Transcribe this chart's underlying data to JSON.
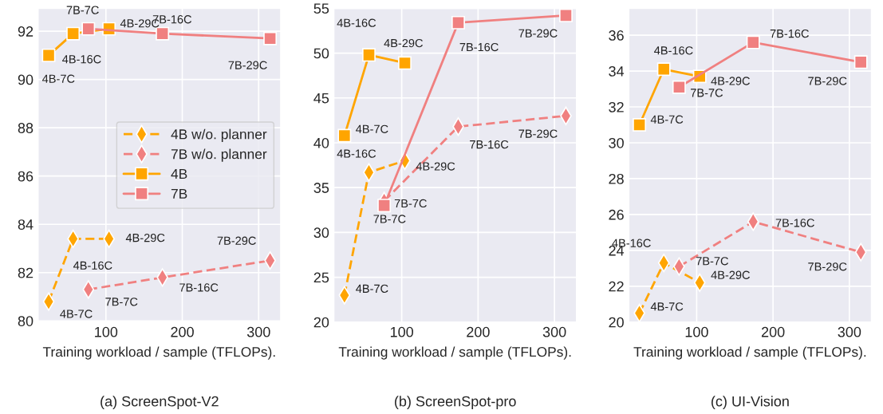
{
  "chart_data": [
    {
      "type": "line",
      "title": "(a) ScreenSpot-V2",
      "xlabel": "Training workload / sample (TFLOPs).",
      "xlim": [
        11,
        329
      ],
      "xticks": [
        100,
        200,
        300
      ],
      "ylim": [
        79.95,
        92.95
      ],
      "yticks": [
        80,
        82,
        84,
        86,
        88,
        90,
        92
      ],
      "grid": true,
      "legend": "center right",
      "series": [
        {
          "name": "4B w/o. planner",
          "color": "#ffa500",
          "marker": "diamond",
          "line_style": "dashed",
          "x": [
            25,
            57,
            104
          ],
          "values": [
            80.8,
            83.4,
            83.4
          ]
        },
        {
          "name": "7B w/o. planner",
          "color": "#f08080",
          "marker": "diamond",
          "line_style": "dashed",
          "x": [
            77,
            174,
            315
          ],
          "values": [
            81.3,
            81.8,
            82.5
          ]
        },
        {
          "name": "4B",
          "color": "#ffa500",
          "marker": "square",
          "line_style": "solid",
          "x": [
            25,
            57,
            104
          ],
          "values": [
            91.0,
            91.9,
            92.1
          ]
        },
        {
          "name": "7B",
          "color": "#f08080",
          "marker": "square",
          "line_style": "solid",
          "x": [
            77,
            174,
            315
          ],
          "values": [
            92.1,
            91.9,
            91.7
          ]
        }
      ],
      "annotations": [
        {
          "text": "4B-7C",
          "x": 25,
          "y": 80.8
        },
        {
          "text": "4B-16C",
          "x": 57,
          "y": 83.4
        },
        {
          "text": "4B-29C",
          "x": 104,
          "y": 83.4
        },
        {
          "text": "7B-7C",
          "x": 77,
          "y": 81.3
        },
        {
          "text": "7B-16C",
          "x": 174,
          "y": 81.8
        },
        {
          "text": "7B-29C",
          "x": 315,
          "y": 82.5
        },
        {
          "text": "4B-7C",
          "x": 25,
          "y": 91.0
        },
        {
          "text": "4B-16C",
          "x": 57,
          "y": 91.9
        },
        {
          "text": "4B-29C",
          "x": 104,
          "y": 92.1
        },
        {
          "text": "7B-7C",
          "x": 77,
          "y": 92.1
        },
        {
          "text": "7B-16C",
          "x": 174,
          "y": 91.9
        },
        {
          "text": "7B-29C",
          "x": 315,
          "y": 91.7
        }
      ]
    },
    {
      "type": "line",
      "title": "(b) ScreenSpot-pro",
      "xlabel": "Training workload / sample (TFLOPs).",
      "xlim": [
        11,
        329
      ],
      "xticks": [
        100,
        200,
        300
      ],
      "ylim": [
        20,
        55
      ],
      "yticks": [
        20,
        25,
        30,
        35,
        40,
        45,
        50,
        55
      ],
      "grid": true,
      "series": [
        {
          "color": "#ffa500",
          "marker": "diamond",
          "line_style": "dashed",
          "x": [
            25,
            57,
            104
          ],
          "values": [
            23.0,
            36.7,
            38.0
          ]
        },
        {
          "color": "#f08080",
          "marker": "diamond",
          "line_style": "dashed",
          "x": [
            77,
            174,
            315
          ],
          "values": [
            33.5,
            41.8,
            43.0
          ]
        },
        {
          "color": "#ffa500",
          "marker": "square",
          "line_style": "solid",
          "x": [
            25,
            57,
            104
          ],
          "values": [
            40.8,
            49.8,
            48.9
          ]
        },
        {
          "color": "#f08080",
          "marker": "square",
          "line_style": "solid",
          "x": [
            77,
            174,
            315
          ],
          "values": [
            33.0,
            53.4,
            54.2
          ]
        }
      ],
      "annotations": [
        {
          "text": "4B-7C",
          "x": 25,
          "y": 23.0
        },
        {
          "text": "4B-16C",
          "x": 57,
          "y": 36.7
        },
        {
          "text": "4B-29C",
          "x": 104,
          "y": 38.0
        },
        {
          "text": "7B-7C",
          "x": 77,
          "y": 33.5
        },
        {
          "text": "7B-16C",
          "x": 174,
          "y": 41.8
        },
        {
          "text": "7B-29C",
          "x": 315,
          "y": 43.0
        },
        {
          "text": "4B-7C",
          "x": 25,
          "y": 40.8
        },
        {
          "text": "4B-16C",
          "x": 57,
          "y": 49.8
        },
        {
          "text": "4B-29C",
          "x": 104,
          "y": 48.9
        },
        {
          "text": "7B-7C",
          "x": 77,
          "y": 33.0
        },
        {
          "text": "7B-16C",
          "x": 174,
          "y": 53.4
        },
        {
          "text": "7B-29C",
          "x": 315,
          "y": 54.2
        }
      ]
    },
    {
      "type": "line",
      "title": "(c) UI-Vision",
      "xlabel": "Training workload / sample (TFLOPs).",
      "xlim": [
        11,
        329
      ],
      "xticks": [
        100,
        200,
        300
      ],
      "ylim": [
        20,
        37.5
      ],
      "yticks": [
        20,
        22,
        24,
        26,
        28,
        30,
        32,
        34,
        36
      ],
      "grid": true,
      "series": [
        {
          "color": "#ffa500",
          "marker": "diamond",
          "line_style": "dashed",
          "x": [
            25,
            57,
            104
          ],
          "values": [
            20.5,
            23.3,
            22.2
          ]
        },
        {
          "color": "#f08080",
          "marker": "diamond",
          "line_style": "dashed",
          "x": [
            77,
            174,
            315
          ],
          "values": [
            23.1,
            25.6,
            23.9
          ]
        },
        {
          "color": "#ffa500",
          "marker": "square",
          "line_style": "solid",
          "x": [
            25,
            57,
            104
          ],
          "values": [
            31.0,
            34.1,
            33.7
          ]
        },
        {
          "color": "#f08080",
          "marker": "square",
          "line_style": "solid",
          "x": [
            77,
            174,
            315
          ],
          "values": [
            33.1,
            35.6,
            34.5
          ]
        }
      ],
      "annotations": [
        {
          "text": "4B-7C",
          "x": 25,
          "y": 20.5
        },
        {
          "text": "4B-16C",
          "x": 57,
          "y": 23.3
        },
        {
          "text": "4B-29C",
          "x": 104,
          "y": 22.2
        },
        {
          "text": "7B-7C",
          "x": 77,
          "y": 23.1
        },
        {
          "text": "7B-16C",
          "x": 174,
          "y": 25.6
        },
        {
          "text": "7B-29C",
          "x": 315,
          "y": 23.9
        },
        {
          "text": "4B-7C",
          "x": 25,
          "y": 31.0
        },
        {
          "text": "4B-16C",
          "x": 57,
          "y": 34.1
        },
        {
          "text": "4B-29C",
          "x": 104,
          "y": 33.7
        },
        {
          "text": "7B-7C",
          "x": 77,
          "y": 33.1
        },
        {
          "text": "7B-16C",
          "x": 174,
          "y": 35.6
        },
        {
          "text": "7B-29C",
          "x": 315,
          "y": 34.5
        }
      ]
    }
  ]
}
